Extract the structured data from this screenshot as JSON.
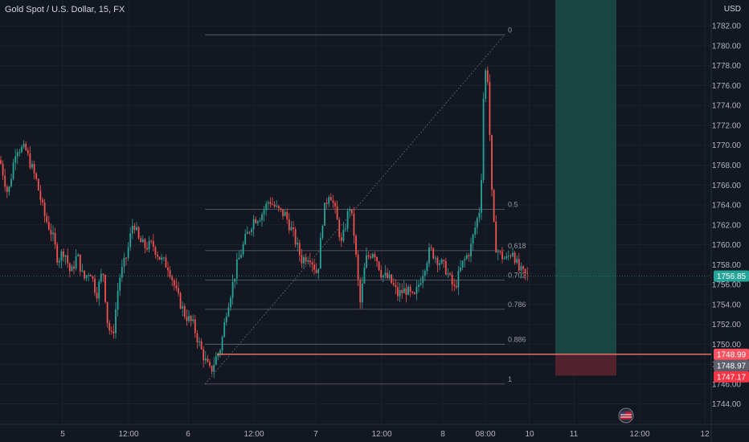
{
  "header": {
    "symbol_title": "Gold Spot / U.S. Dollar, 15, FX",
    "currency": "USD"
  },
  "colors": {
    "background": "#131722",
    "up": "#26a69a",
    "down": "#ef5350",
    "grid": "#1e222d",
    "fib": "#787b86",
    "target_zone": "#1b4d48",
    "stop_zone": "#5b2530",
    "entry_line": "#f7776b"
  },
  "chart_data": {
    "type": "candlestick",
    "ylim": [
      1743.0,
      1785.5
    ],
    "y_ticks": [
      1744,
      1746,
      1748,
      1750,
      1752,
      1754,
      1756,
      1758,
      1760,
      1762,
      1764,
      1766,
      1768,
      1770,
      1772,
      1774,
      1776,
      1778,
      1780,
      1782
    ],
    "y_tick_labels": [
      "1744.00",
      "1746.00",
      "1748.00",
      "1750.00",
      "1752.00",
      "1754.00",
      "1756.00",
      "1758.00",
      "1760.00",
      "1762.00",
      "1764.00",
      "1766.00",
      "1768.00",
      "1770.00",
      "1772.00",
      "1774.00",
      "1776.00",
      "1778.00",
      "1780.00",
      "1782.00"
    ],
    "x_labels": [
      "5",
      "12:00",
      "6",
      "12:00",
      "7",
      "12:00",
      "8",
      "08:00",
      "10",
      "11",
      "12:00",
      "12"
    ],
    "price_path": [
      [
        0,
        1768.5
      ],
      [
        10,
        1765.0
      ],
      [
        20,
        1769.8
      ],
      [
        32,
        1769.5
      ],
      [
        45,
        1766.5
      ],
      [
        55,
        1763.0
      ],
      [
        65,
        1761.0
      ],
      [
        72,
        1758.5
      ],
      [
        80,
        1759.5
      ],
      [
        88,
        1757.0
      ],
      [
        96,
        1759.0
      ],
      [
        104,
        1756.5
      ],
      [
        112,
        1757.5
      ],
      [
        120,
        1755.0
      ],
      [
        128,
        1757.5
      ],
      [
        134,
        1752.0
      ],
      [
        140,
        1750.5
      ],
      [
        148,
        1756.5
      ],
      [
        158,
        1759.0
      ],
      [
        166,
        1762.5
      ],
      [
        172,
        1760.5
      ],
      [
        180,
        1759.8
      ],
      [
        190,
        1760.0
      ],
      [
        200,
        1758.5
      ],
      [
        210,
        1757.8
      ],
      [
        220,
        1755.0
      ],
      [
        230,
        1753.0
      ],
      [
        240,
        1752.0
      ],
      [
        250,
        1749.5
      ],
      [
        257,
        1748.0
      ],
      [
        262,
        1747.2
      ],
      [
        268,
        1748.5
      ],
      [
        275,
        1749.8
      ],
      [
        282,
        1753.5
      ],
      [
        288,
        1755.5
      ],
      [
        295,
        1758.0
      ],
      [
        305,
        1760.5
      ],
      [
        315,
        1762.5
      ],
      [
        325,
        1763.0
      ],
      [
        335,
        1764.5
      ],
      [
        345,
        1763.5
      ],
      [
        355,
        1763.0
      ],
      [
        365,
        1761.0
      ],
      [
        375,
        1758.5
      ],
      [
        385,
        1759.0
      ],
      [
        395,
        1757.0
      ],
      [
        402,
        1763.0
      ],
      [
        410,
        1765.5
      ],
      [
        418,
        1763.0
      ],
      [
        425,
        1760.0
      ],
      [
        435,
        1764.0
      ],
      [
        440,
        1761.5
      ],
      [
        448,
        1754.0
      ],
      [
        455,
        1758.5
      ],
      [
        465,
        1759.5
      ],
      [
        475,
        1757.0
      ],
      [
        485,
        1756.5
      ],
      [
        495,
        1755.0
      ],
      [
        505,
        1755.5
      ],
      [
        515,
        1754.5
      ],
      [
        525,
        1757.0
      ],
      [
        535,
        1759.5
      ],
      [
        545,
        1758.5
      ],
      [
        555,
        1757.5
      ],
      [
        565,
        1755.5
      ],
      [
        575,
        1758.0
      ],
      [
        585,
        1759.5
      ],
      [
        592,
        1762.0
      ],
      [
        598,
        1764.0
      ],
      [
        602,
        1776.0
      ],
      [
        606,
        1778.5
      ],
      [
        609,
        1772.0
      ],
      [
        612,
        1765.0
      ],
      [
        616,
        1760.0
      ],
      [
        622,
        1759.0
      ],
      [
        630,
        1758.5
      ],
      [
        638,
        1759.5
      ],
      [
        645,
        1757.5
      ],
      [
        652,
        1757.0
      ],
      [
        658,
        1756.85
      ]
    ],
    "last_price": 1756.85,
    "last_price_label": "1756.85",
    "fibonacci": {
      "high": 1781.1,
      "low": 1746.0,
      "levels": [
        {
          "ratio": 0,
          "label": "0"
        },
        {
          "ratio": 0.5,
          "label": "0.5"
        },
        {
          "ratio": 0.618,
          "label": "0.618"
        },
        {
          "ratio": 0.702,
          "label": "0.702"
        },
        {
          "ratio": 0.786,
          "label": "0.786"
        },
        {
          "ratio": 0.886,
          "label": "0.886"
        },
        {
          "ratio": 1,
          "label": "1"
        }
      ]
    },
    "position": {
      "entry": 1748.99,
      "entry_label": "1748.99",
      "mid_label": "1748.97",
      "mid": 1748.2,
      "stop": 1747.17,
      "stop_label": "1747.17",
      "target_top": 1785.5
    }
  }
}
